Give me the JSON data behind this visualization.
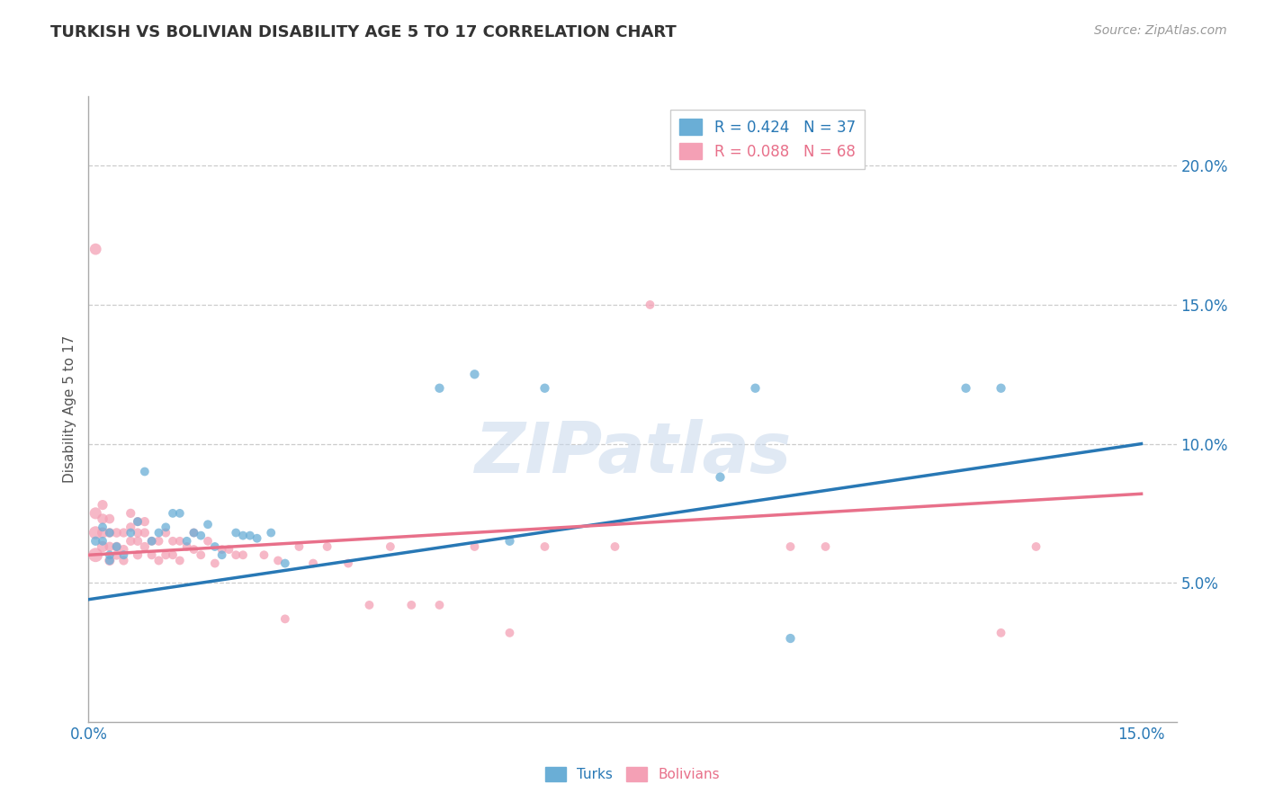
{
  "title": "TURKISH VS BOLIVIAN DISABILITY AGE 5 TO 17 CORRELATION CHART",
  "source": "Source: ZipAtlas.com",
  "ylabel": "Disability Age 5 to 17",
  "xlim": [
    0.0,
    0.155
  ],
  "ylim": [
    0.0,
    0.225
  ],
  "yticks": [
    0.05,
    0.1,
    0.15,
    0.2
  ],
  "ytick_labels": [
    "5.0%",
    "10.0%",
    "15.0%",
    "20.0%"
  ],
  "xticks": [
    0.0,
    0.15
  ],
  "xtick_labels": [
    "0.0%",
    "15.0%"
  ],
  "turks_R": "0.424",
  "turks_N": "37",
  "bolivians_R": "0.088",
  "bolivians_N": "68",
  "turks_color": "#6aaed6",
  "bolivians_color": "#f4a0b5",
  "turks_line_color": "#2878b5",
  "bolivians_line_color": "#e8708a",
  "background_color": "#ffffff",
  "grid_color": "#cccccc",
  "turks_line_x0": 0.0,
  "turks_line_y0": 0.044,
  "turks_line_x1": 0.15,
  "turks_line_y1": 0.1,
  "bolivians_line_x0": 0.0,
  "bolivians_line_y0": 0.06,
  "bolivians_line_x1": 0.15,
  "bolivians_line_y1": 0.082,
  "turks_x": [
    0.001,
    0.002,
    0.002,
    0.003,
    0.003,
    0.004,
    0.005,
    0.006,
    0.007,
    0.008,
    0.009,
    0.01,
    0.011,
    0.012,
    0.013,
    0.015,
    0.016,
    0.017,
    0.019,
    0.021,
    0.022,
    0.024,
    0.026,
    0.028,
    0.05,
    0.055,
    0.06,
    0.065,
    0.09,
    0.095,
    0.1,
    0.125,
    0.13,
    0.003,
    0.014,
    0.018,
    0.023
  ],
  "turks_y": [
    0.065,
    0.065,
    0.07,
    0.06,
    0.068,
    0.063,
    0.06,
    0.068,
    0.072,
    0.09,
    0.065,
    0.068,
    0.07,
    0.075,
    0.075,
    0.068,
    0.067,
    0.071,
    0.06,
    0.068,
    0.067,
    0.066,
    0.068,
    0.057,
    0.12,
    0.125,
    0.065,
    0.12,
    0.088,
    0.12,
    0.03,
    0.12,
    0.12,
    0.058,
    0.065,
    0.063,
    0.067
  ],
  "turks_sizes": [
    55,
    50,
    50,
    50,
    50,
    50,
    50,
    50,
    50,
    50,
    50,
    50,
    50,
    50,
    50,
    50,
    50,
    50,
    50,
    50,
    50,
    50,
    50,
    50,
    55,
    55,
    55,
    55,
    55,
    55,
    55,
    55,
    55,
    50,
    50,
    50,
    50
  ],
  "bolivians_x": [
    0.001,
    0.001,
    0.001,
    0.001,
    0.002,
    0.002,
    0.002,
    0.002,
    0.003,
    0.003,
    0.003,
    0.003,
    0.004,
    0.004,
    0.004,
    0.005,
    0.005,
    0.005,
    0.006,
    0.006,
    0.006,
    0.007,
    0.007,
    0.007,
    0.007,
    0.008,
    0.008,
    0.008,
    0.009,
    0.009,
    0.01,
    0.01,
    0.011,
    0.011,
    0.012,
    0.012,
    0.013,
    0.013,
    0.014,
    0.015,
    0.015,
    0.016,
    0.017,
    0.018,
    0.019,
    0.02,
    0.021,
    0.022,
    0.025,
    0.027,
    0.028,
    0.03,
    0.032,
    0.034,
    0.037,
    0.04,
    0.043,
    0.046,
    0.05,
    0.055,
    0.06,
    0.065,
    0.075,
    0.08,
    0.1,
    0.105,
    0.13,
    0.135
  ],
  "bolivians_y": [
    0.06,
    0.068,
    0.075,
    0.17,
    0.063,
    0.068,
    0.073,
    0.078,
    0.058,
    0.063,
    0.068,
    0.073,
    0.06,
    0.063,
    0.068,
    0.058,
    0.062,
    0.068,
    0.065,
    0.07,
    0.075,
    0.06,
    0.065,
    0.068,
    0.072,
    0.063,
    0.068,
    0.072,
    0.06,
    0.065,
    0.058,
    0.065,
    0.06,
    0.068,
    0.06,
    0.065,
    0.058,
    0.065,
    0.063,
    0.062,
    0.068,
    0.06,
    0.065,
    0.057,
    0.062,
    0.062,
    0.06,
    0.06,
    0.06,
    0.058,
    0.037,
    0.063,
    0.057,
    0.063,
    0.057,
    0.042,
    0.063,
    0.042,
    0.042,
    0.063,
    0.032,
    0.063,
    0.063,
    0.15,
    0.063,
    0.063,
    0.032,
    0.063
  ],
  "bolivians_sizes": [
    130,
    110,
    90,
    85,
    80,
    75,
    70,
    65,
    65,
    60,
    60,
    60,
    60,
    58,
    58,
    55,
    55,
    55,
    55,
    55,
    55,
    55,
    55,
    55,
    55,
    55,
    55,
    55,
    52,
    52,
    52,
    52,
    52,
    52,
    50,
    50,
    50,
    50,
    50,
    50,
    50,
    50,
    50,
    50,
    50,
    50,
    50,
    50,
    50,
    50,
    50,
    50,
    50,
    50,
    50,
    50,
    50,
    50,
    50,
    50,
    50,
    50,
    50,
    50,
    50,
    50,
    50,
    50
  ]
}
